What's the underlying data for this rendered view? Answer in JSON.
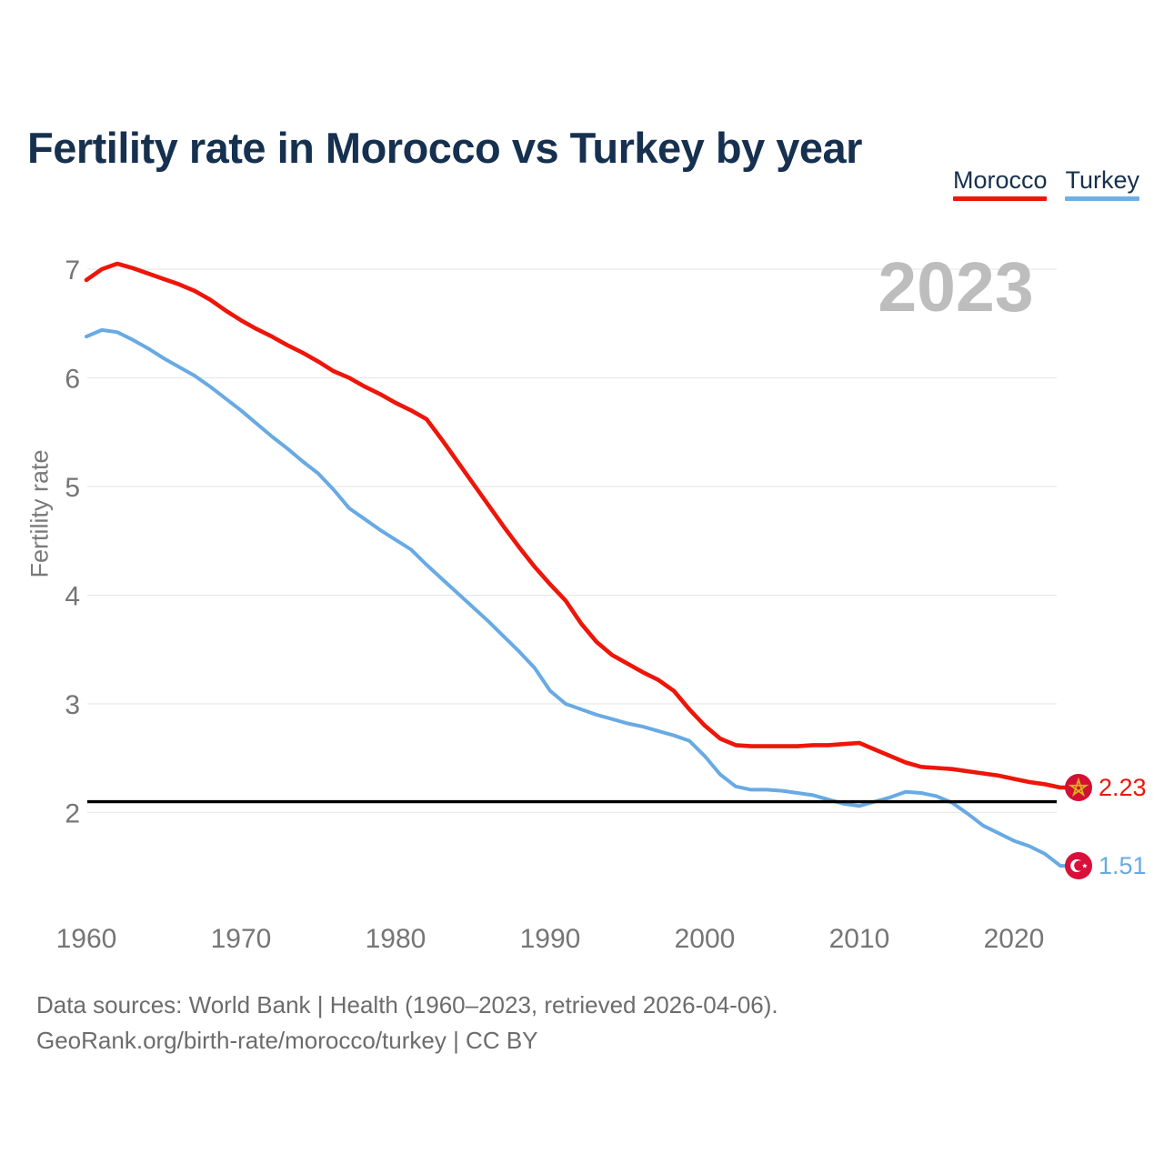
{
  "header": {
    "title": "Fertility rate in Morocco vs Turkey by year"
  },
  "legend": [
    {
      "label": "Morocco",
      "color": "#ee1509"
    },
    {
      "label": "Turkey",
      "color": "#6fb0e4"
    }
  ],
  "watermark": "2023",
  "footer": {
    "line1": "Data sources: World Bank | Health (1960–2023, retrieved 2026-04-06).",
    "line2": "GeoRank.org/birth-rate/morocco/turkey | CC BY"
  },
  "chart_data": {
    "type": "line",
    "title": "Fertility rate in Morocco vs Turkey by year",
    "xlabel": "",
    "ylabel": "Fertility rate",
    "ylim": [
      1.4,
      7.2
    ],
    "x_range": [
      1960,
      2023
    ],
    "yticks": [
      2,
      3,
      4,
      5,
      6,
      7
    ],
    "xticks": [
      1960,
      1970,
      1980,
      1990,
      2000,
      2010,
      2020
    ],
    "grid": "horizontal",
    "legend_position": "top-right",
    "reference_line": 2.1,
    "years": [
      1960,
      1961,
      1962,
      1963,
      1964,
      1965,
      1966,
      1967,
      1968,
      1969,
      1970,
      1971,
      1972,
      1973,
      1974,
      1975,
      1976,
      1977,
      1978,
      1979,
      1980,
      1981,
      1982,
      1983,
      1984,
      1985,
      1986,
      1987,
      1988,
      1989,
      1990,
      1991,
      1992,
      1993,
      1994,
      1995,
      1996,
      1997,
      1998,
      1999,
      2000,
      2001,
      2002,
      2003,
      2004,
      2005,
      2006,
      2007,
      2008,
      2009,
      2010,
      2011,
      2012,
      2013,
      2014,
      2015,
      2016,
      2017,
      2018,
      2019,
      2020,
      2021,
      2022,
      2023
    ],
    "series": [
      {
        "name": "Morocco",
        "color": "#ee1509",
        "flag_color": "#d21033",
        "flag_star_color": "#dfae1e",
        "end_label": "2.23",
        "values": [
          6.9,
          7.0,
          7.05,
          7.01,
          6.96,
          6.91,
          6.86,
          6.8,
          6.72,
          6.62,
          6.53,
          6.45,
          6.38,
          6.3,
          6.23,
          6.15,
          6.06,
          6.0,
          5.92,
          5.85,
          5.77,
          5.7,
          5.62,
          5.43,
          5.23,
          5.03,
          4.83,
          4.63,
          4.44,
          4.26,
          4.1,
          3.95,
          3.74,
          3.57,
          3.45,
          3.37,
          3.29,
          3.22,
          3.12,
          2.95,
          2.8,
          2.68,
          2.62,
          2.61,
          2.61,
          2.61,
          2.61,
          2.62,
          2.62,
          2.63,
          2.64,
          2.58,
          2.52,
          2.46,
          2.42,
          2.41,
          2.4,
          2.38,
          2.36,
          2.34,
          2.31,
          2.28,
          2.26,
          2.23
        ]
      },
      {
        "name": "Turkey",
        "color": "#68aae3",
        "flag_color": "#d8103a",
        "end_label": "1.51",
        "values": [
          6.38,
          6.44,
          6.42,
          6.35,
          6.27,
          6.18,
          6.1,
          6.02,
          5.92,
          5.81,
          5.7,
          5.58,
          5.46,
          5.35,
          5.23,
          5.12,
          4.97,
          4.8,
          4.7,
          4.6,
          4.51,
          4.42,
          4.28,
          4.15,
          4.02,
          3.89,
          3.76,
          3.62,
          3.48,
          3.33,
          3.12,
          3.0,
          2.95,
          2.9,
          2.86,
          2.82,
          2.79,
          2.75,
          2.71,
          2.66,
          2.52,
          2.35,
          2.24,
          2.21,
          2.21,
          2.2,
          2.18,
          2.16,
          2.12,
          2.08,
          2.06,
          2.1,
          2.14,
          2.19,
          2.18,
          2.15,
          2.09,
          1.99,
          1.88,
          1.81,
          1.74,
          1.69,
          1.62,
          1.51
        ]
      }
    ]
  }
}
